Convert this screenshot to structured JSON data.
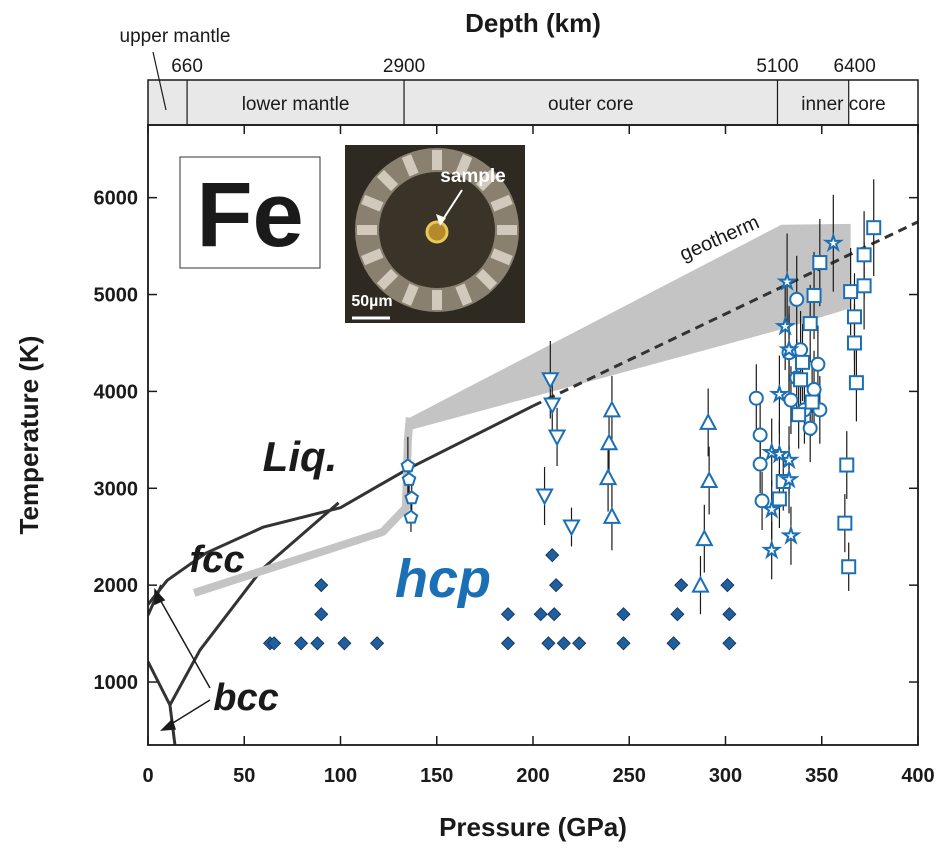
{
  "chart_data": {
    "type": "scatter",
    "x_label": "Pressure (GPa)",
    "y_label": "Temperature (K)",
    "x2_label": "Depth (km)",
    "xlim": [
      0,
      400
    ],
    "ylim": [
      350,
      6750
    ],
    "xticks": [
      0,
      50,
      100,
      150,
      200,
      250,
      300,
      350,
      400
    ],
    "yticks": [
      1000,
      2000,
      3000,
      4000,
      5000,
      6000
    ],
    "x2ticks": [
      {
        "value": 20.3,
        "label": "660"
      },
      {
        "value": 133,
        "label": "2900"
      },
      {
        "value": 327,
        "label": "5100"
      },
      {
        "value": 364,
        "label": "6400"
      }
    ],
    "depth_regions": [
      {
        "name": "upper mantle",
        "range": [
          0,
          20.3
        ]
      },
      {
        "name": "lower mantle",
        "range": [
          20.3,
          133
        ]
      },
      {
        "name": "outer core",
        "range": [
          133,
          327
        ]
      },
      {
        "name": "inner core",
        "range": [
          327,
          364
        ]
      }
    ],
    "region_color": "#e8e8e8",
    "annotations": {
      "element": "Fe",
      "liquid": "Liq.",
      "fcc": "fcc",
      "hcp": "hcp",
      "bcc": "bcc",
      "geotherm": "geotherm",
      "sample": "sample",
      "scale_bar": "50µm"
    },
    "band": {
      "x": [
        136,
        329,
        365
      ],
      "upper": [
        3730,
        5720,
        5730
      ],
      "lower": [
        3600,
        4640,
        4860
      ],
      "color": "#c4c4c4"
    },
    "lines": [
      {
        "style": "solid",
        "color": "#333333",
        "x": [
          0,
          10,
          30,
          60,
          100,
          135,
          200
        ],
        "y": [
          1800,
          2050,
          2330,
          2600,
          2800,
          3200,
          3850
        ]
      },
      {
        "style": "dashed",
        "color": "#333333",
        "x": [
          200,
          400
        ],
        "y": [
          3850,
          5750
        ]
      },
      {
        "style": "solid",
        "color": "#333333",
        "x": [
          11.4,
          27,
          59,
          99
        ],
        "y": [
          763,
          1330,
          2160,
          2850
        ]
      },
      {
        "style": "solid",
        "color": "#333333",
        "x": [
          0,
          11.4,
          14
        ],
        "y": [
          1210,
          763,
          350
        ]
      },
      {
        "style": "solid",
        "color": "#333333",
        "x": [
          0,
          7
        ],
        "y": [
          1690,
          2000
        ]
      },
      {
        "style": "thick",
        "color": "#c4c4c4",
        "x": [
          24,
          122,
          134,
          135,
          136
        ],
        "y": [
          1920,
          2550,
          2800,
          3500,
          3730
        ]
      }
    ],
    "series": [
      {
        "marker": "diamond",
        "color": "#1f5f9f",
        "x": [
          63.4,
          65.5,
          79.5,
          88,
          102,
          119,
          187,
          208,
          216,
          224,
          247,
          273,
          302,
          90,
          187,
          204,
          211,
          247,
          275,
          302,
          90,
          212,
          277,
          301,
          210
        ],
        "y": [
          1400,
          1400,
          1400,
          1400,
          1400,
          1400,
          1400,
          1400,
          1400,
          1400,
          1400,
          1400,
          1400,
          1700,
          1700,
          1700,
          1700,
          1700,
          1700,
          1700,
          2000,
          2000,
          2000,
          2000,
          2310
        ]
      },
      {
        "marker": "pentagon",
        "color": "#1a6fb5",
        "x": [
          135,
          135.6,
          137,
          136.6
        ],
        "y": [
          3230,
          3090,
          2900,
          2700
        ],
        "yerr": [
          300,
          150,
          150,
          150
        ]
      },
      {
        "marker": "triangle-down",
        "color": "#1a6fb5",
        "x": [
          209,
          210,
          212.5,
          206,
          220
        ],
        "y": [
          4120,
          3860,
          3530,
          2920,
          2600
        ],
        "yerr": [
          400,
          300,
          300,
          300,
          200
        ]
      },
      {
        "marker": "triangle-up",
        "color": "#1a6fb5",
        "x": [
          241,
          239.5,
          239,
          241,
          291,
          291.5,
          289,
          287
        ],
        "y": [
          3810,
          3470,
          3110,
          2710,
          3680,
          3080,
          2480,
          2000
        ],
        "yerr": [
          350,
          350,
          350,
          350,
          350,
          350,
          350,
          300
        ]
      },
      {
        "marker": "circle",
        "color": "#1a6fb5",
        "x": [
          316,
          318,
          318,
          319,
          337,
          339,
          337,
          334,
          341,
          344,
          346,
          349,
          348,
          333
        ],
        "y": [
          3930,
          3550,
          3250,
          2870,
          4950,
          4430,
          4140,
          3910,
          3810,
          3620,
          4020,
          3810,
          4280,
          4400
        ],
        "yerr": [
          350,
          350,
          300,
          300,
          450,
          400,
          400,
          350,
          350,
          350,
          400,
          350,
          400,
          400
        ]
      },
      {
        "marker": "square",
        "color": "#1a6fb5",
        "x": [
          377,
          372,
          372,
          365,
          367,
          367,
          368,
          363,
          362,
          364,
          349,
          346,
          344,
          340,
          339,
          338,
          345,
          328,
          330
        ],
        "y": [
          5690,
          5410,
          5090,
          5030,
          4770,
          4500,
          4090,
          3240,
          2640,
          2190,
          5330,
          4990,
          4700,
          4300,
          4120,
          3760,
          3890,
          2890,
          3070
        ],
        "yerr": [
          500,
          450,
          450,
          450,
          450,
          400,
          400,
          350,
          300,
          250,
          450,
          450,
          400,
          400,
          350,
          350,
          350,
          300,
          300
        ]
      },
      {
        "marker": "star",
        "color": "#1a6fb5",
        "x": [
          356,
          332,
          331,
          328,
          333,
          324,
          333,
          333,
          324,
          334,
          324,
          328
        ],
        "y": [
          5530,
          5130,
          4670,
          3970,
          4430,
          3370,
          3290,
          3090,
          2360,
          2510,
          2780,
          3350
        ],
        "yerr": [
          500,
          500,
          450,
          400,
          450,
          350,
          350,
          350,
          300,
          300,
          300,
          350
        ]
      }
    ]
  }
}
